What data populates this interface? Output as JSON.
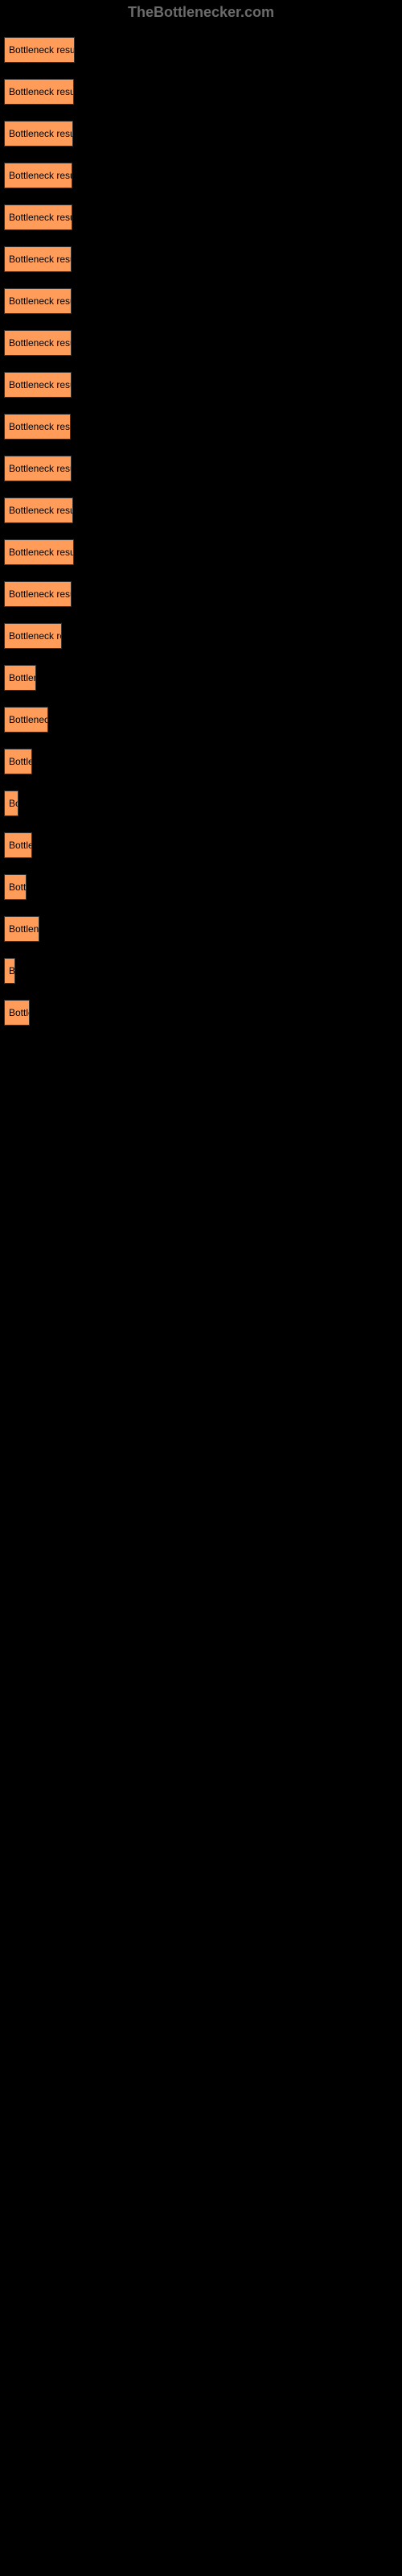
{
  "header": {
    "site_name": "TheBottlenecker.com"
  },
  "buttons": [
    {
      "label": "Bottleneck result",
      "width_class": "btn-1"
    },
    {
      "label": "Bottleneck result",
      "width_class": "btn-2"
    },
    {
      "label": "Bottleneck result",
      "width_class": "btn-3"
    },
    {
      "label": "Bottleneck result",
      "width_class": "btn-4"
    },
    {
      "label": "Bottleneck result",
      "width_class": "btn-5"
    },
    {
      "label": "Bottleneck result",
      "width_class": "btn-6"
    },
    {
      "label": "Bottleneck result",
      "width_class": "btn-7"
    },
    {
      "label": "Bottleneck result",
      "width_class": "btn-8"
    },
    {
      "label": "Bottleneck result",
      "width_class": "btn-9"
    },
    {
      "label": "Bottleneck result",
      "width_class": "btn-10"
    },
    {
      "label": "Bottleneck result",
      "width_class": "btn-11"
    },
    {
      "label": "Bottleneck result",
      "width_class": "btn-12"
    },
    {
      "label": "Bottleneck result",
      "width_class": "btn-13"
    },
    {
      "label": "Bottleneck result",
      "width_class": "btn-14"
    },
    {
      "label": "Bottleneck re",
      "width_class": "btn-15"
    },
    {
      "label": "Bottlene",
      "width_class": "btn-16"
    },
    {
      "label": "Bottleneck",
      "width_class": "btn-17"
    },
    {
      "label": "Bottlen",
      "width_class": "btn-18"
    },
    {
      "label": "Bo",
      "width_class": "btn-19"
    },
    {
      "label": "Bottlen",
      "width_class": "btn-20"
    },
    {
      "label": "Bottle",
      "width_class": "btn-21"
    },
    {
      "label": "Bottlenec",
      "width_class": "btn-22"
    },
    {
      "label": "Be",
      "width_class": "btn-23"
    },
    {
      "label": "Bottle",
      "width_class": "btn-24"
    }
  ],
  "colors": {
    "background": "#000000",
    "button_bg": "#ff9c5a",
    "button_border": "#333333",
    "header_text": "#6b6b6b"
  }
}
